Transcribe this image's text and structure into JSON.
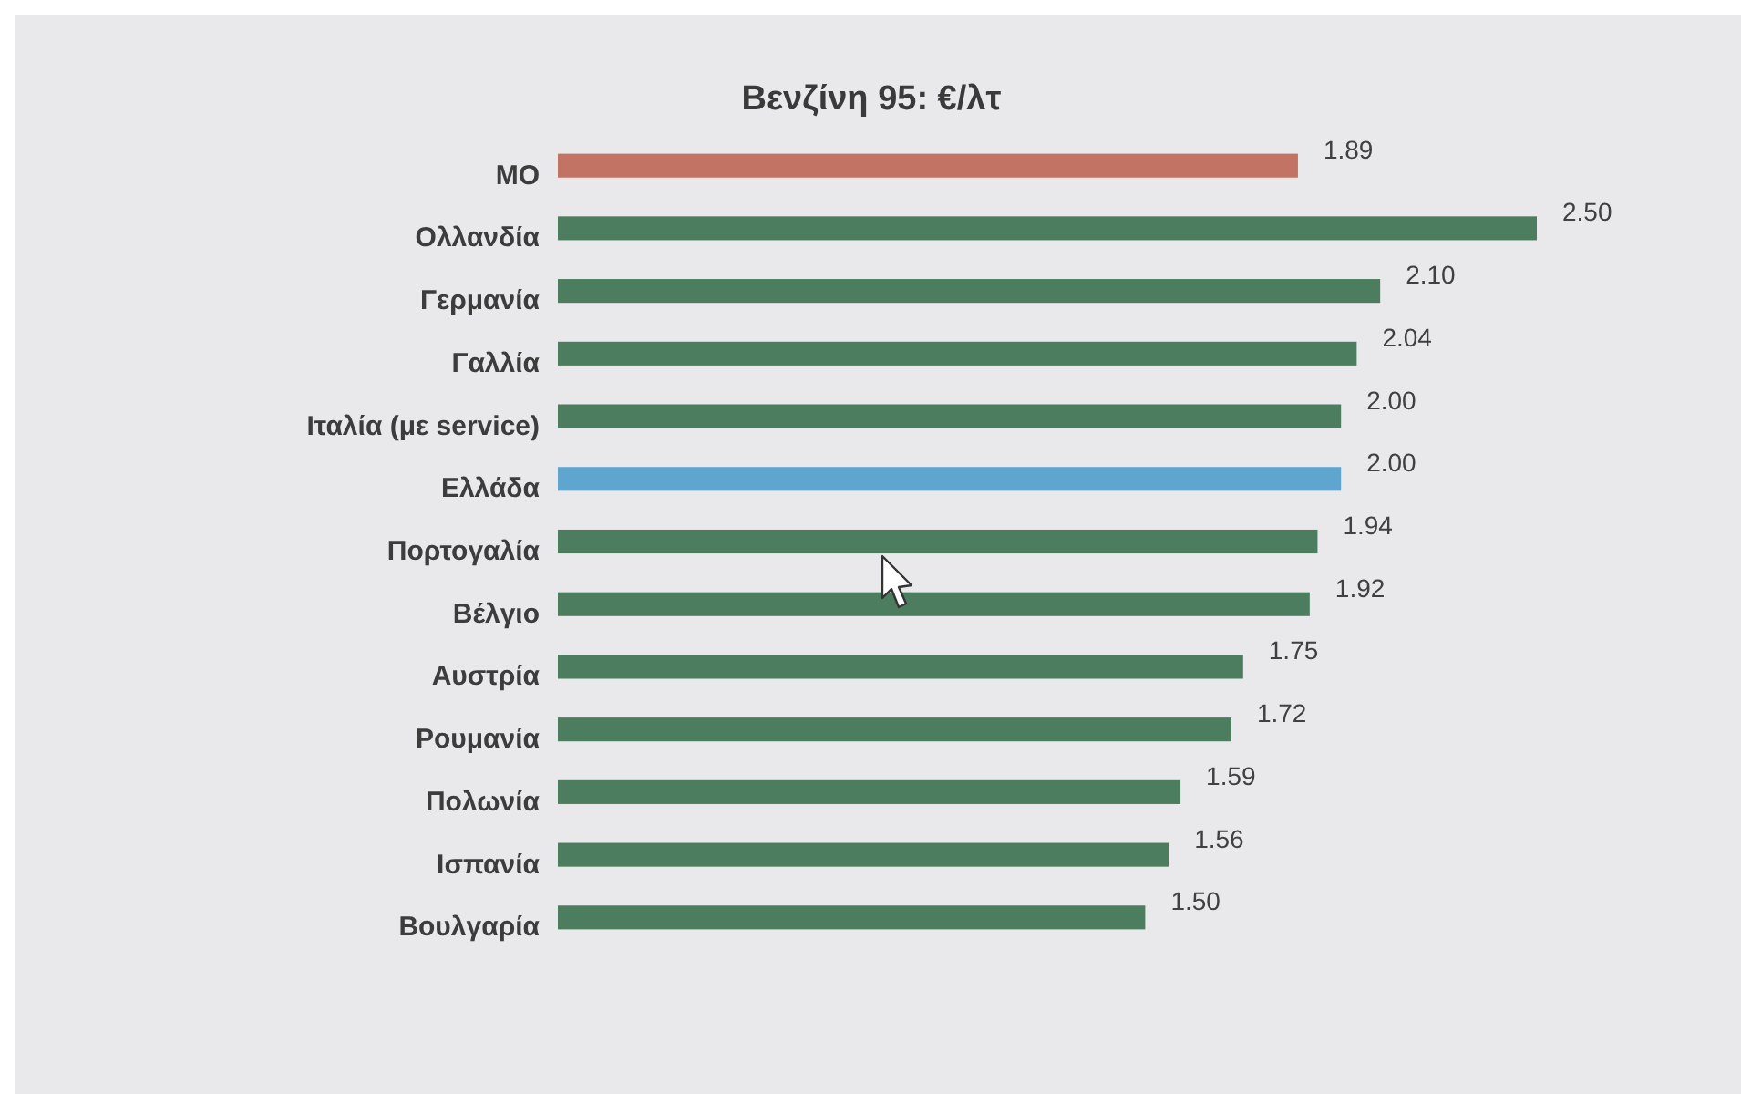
{
  "chart_data": {
    "type": "bar",
    "orientation": "horizontal",
    "title": "Βενζίνη 95: €/λτ",
    "categories": [
      "ΜΟ",
      "Ολλανδία",
      "Γερμανία",
      "Γαλλία",
      "Ιταλία (με service)",
      "Ελλάδα",
      "Πορτογαλία",
      "Βέλγιο",
      "Αυστρία",
      "Ρουμανία",
      "Πολωνία",
      "Ισπανία",
      "Βουλγαρία"
    ],
    "values": [
      1.89,
      2.5,
      2.1,
      2.04,
      2.0,
      2.0,
      1.94,
      1.92,
      1.75,
      1.72,
      1.59,
      1.56,
      1.5
    ],
    "colors": [
      "#c27363",
      "#4c7d5e",
      "#4c7d5e",
      "#4c7d5e",
      "#4c7d5e",
      "#5ea6cf",
      "#4c7d5e",
      "#4c7d5e",
      "#4c7d5e",
      "#4c7d5e",
      "#4c7d5e",
      "#4c7d5e",
      "#4c7d5e"
    ],
    "value_labels": [
      "1.89",
      "2.50",
      "2.10",
      "2.04",
      "2.00",
      "2.00",
      "1.94",
      "1.92",
      "1.75",
      "1.72",
      "1.59",
      "1.56",
      "1.50"
    ]
  }
}
